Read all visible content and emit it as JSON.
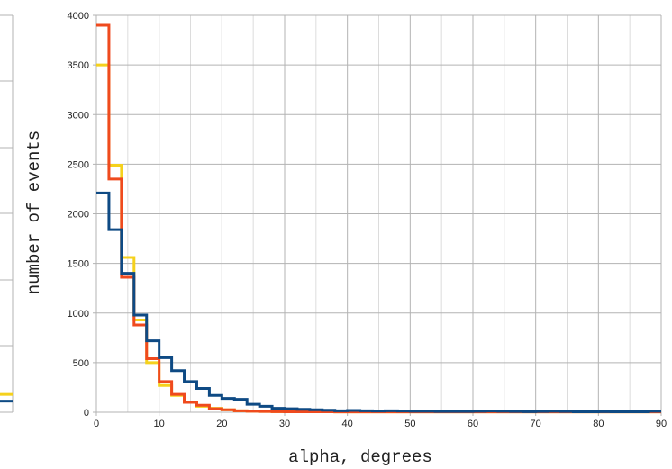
{
  "chart_data": {
    "type": "line",
    "step": true,
    "xlabel": "alpha, degrees",
    "ylabel": "number of events",
    "xlim": [
      0,
      90
    ],
    "ylim": [
      0,
      4000
    ],
    "x_ticks": [
      0,
      10,
      20,
      30,
      40,
      50,
      60,
      70,
      80,
      90
    ],
    "x_tick_labels": [
      "0",
      "10",
      "20",
      "30",
      "40",
      "50",
      "60",
      "70",
      "80",
      "90"
    ],
    "y_ticks": [
      0,
      500,
      1000,
      1500,
      2000,
      2500,
      3000,
      3500,
      4000
    ],
    "y_tick_labels": [
      "0",
      "500",
      "1000",
      "1500",
      "2000",
      "2500",
      "3000",
      "3500",
      "4000"
    ],
    "grid": true,
    "bin_width": 2,
    "bin_starts": [
      0,
      2,
      4,
      6,
      8,
      10,
      12,
      14,
      16,
      18,
      20,
      22,
      24,
      26,
      28,
      30,
      32,
      34,
      36,
      38,
      40,
      42,
      44,
      46,
      48,
      50,
      52,
      54,
      56,
      58,
      60,
      62,
      64,
      66,
      68,
      70,
      72,
      74,
      76,
      78,
      80,
      82,
      84,
      86,
      88
    ],
    "series": [
      {
        "color": "#f5d11c",
        "values": [
          3500,
          2490,
          1560,
          930,
          500,
          270,
          170,
          100,
          60,
          40,
          25,
          15,
          10,
          8,
          6,
          5,
          5,
          4,
          4,
          3,
          3,
          3,
          3,
          3,
          3,
          3,
          3,
          3,
          3,
          3,
          3,
          3,
          3,
          3,
          3,
          3,
          3,
          3,
          3,
          3,
          3,
          3,
          3,
          3,
          3
        ]
      },
      {
        "color": "#ef4a1e",
        "values": [
          3900,
          2350,
          1360,
          880,
          540,
          310,
          180,
          100,
          70,
          35,
          25,
          15,
          10,
          8,
          6,
          5,
          5,
          4,
          4,
          3,
          3,
          3,
          3,
          3,
          3,
          3,
          3,
          3,
          3,
          3,
          3,
          3,
          3,
          3,
          3,
          3,
          3,
          3,
          3,
          3,
          3,
          3,
          3,
          3,
          3
        ]
      },
      {
        "color": "#0e4a84",
        "values": [
          2210,
          1840,
          1400,
          980,
          720,
          550,
          420,
          310,
          240,
          170,
          140,
          130,
          80,
          60,
          40,
          35,
          30,
          25,
          20,
          15,
          18,
          15,
          12,
          15,
          12,
          10,
          10,
          8,
          8,
          8,
          10,
          12,
          10,
          8,
          6,
          8,
          10,
          8,
          5,
          5,
          6,
          5,
          5,
          5,
          10
        ]
      }
    ],
    "left_panel_partial": {
      "series_edge_values": [
        {
          "color": "#f5d11c",
          "y_fraction": 0.045
        },
        {
          "color": "#0e4a84",
          "y_fraction": 0.028
        }
      ]
    }
  }
}
